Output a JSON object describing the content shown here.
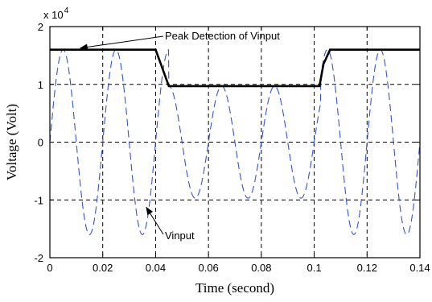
{
  "chart_data": {
    "type": "line",
    "title": "",
    "xlabel": "Time (second)",
    "ylabel": "Voltage (Volt)",
    "y_exponent_label": "x 10",
    "y_exponent_power": "4",
    "xlim": [
      0,
      0.14
    ],
    "ylim": [
      -2,
      2
    ],
    "y_scale_note": "y-axis tick values are multiplied by 10^4",
    "x_ticks": [
      "0",
      "0.02",
      "0.04",
      "0.06",
      "0.08",
      "0.1",
      "0.12",
      "0.14"
    ],
    "y_ticks": [
      "-2",
      "-1",
      "0",
      "1",
      "2"
    ],
    "grid": true,
    "series": [
      {
        "name": "Vinput",
        "style": "dashed",
        "color": "#3355cc",
        "waveform": "sinusoid",
        "frequency_hz": 50,
        "segments": [
          {
            "t_start": 0,
            "t_end": 0.045,
            "amplitude": 1.6
          },
          {
            "t_start": 0.045,
            "t_end": 0.1025,
            "amplitude": 0.97
          },
          {
            "t_start": 0.1025,
            "t_end": 0.14,
            "amplitude": 1.6
          }
        ]
      },
      {
        "name": "Peak Detection of Vinput",
        "style": "solid",
        "color": "#000000",
        "x": [
          0,
          0.04,
          0.042,
          0.045,
          0.102,
          0.1035,
          0.106,
          0.14
        ],
        "y": [
          1.6,
          1.6,
          1.35,
          0.97,
          0.97,
          1.35,
          1.6,
          1.6
        ]
      }
    ],
    "annotations": [
      {
        "text": "Peak Detection of Vinput",
        "points_to_x": 0.0115,
        "points_to_y": 1.6
      },
      {
        "text": "Vinput",
        "points_to_x": 0.0365,
        "points_to_y": -1.1
      }
    ]
  }
}
